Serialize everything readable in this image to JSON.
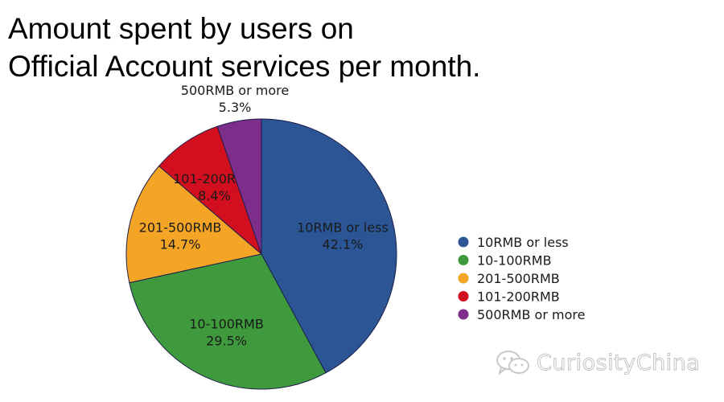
{
  "chart_data": {
    "type": "pie",
    "title_lines": [
      "Amount spent by users on",
      "Official Account services per month."
    ],
    "slices": [
      {
        "label": "10RMB or less",
        "value": 42.1,
        "value_label": "42.1%",
        "color": "#2b5595"
      },
      {
        "label": "10-100RMB",
        "value": 29.5,
        "value_label": "29.5%",
        "color": "#3f9a3d"
      },
      {
        "label": "201-500RMB",
        "value": 14.7,
        "value_label": "14.7%",
        "color": "#f5a526"
      },
      {
        "label": "101-200RMB",
        "value": 8.4,
        "value_label": "8.4%",
        "color": "#d10f1f"
      },
      {
        "label": "500RMB or more",
        "value": 5.3,
        "value_label": "5.3%",
        "color": "#7d2d8a"
      }
    ],
    "legend": [
      "10RMB or less",
      "10-100RMB",
      "201-500RMB",
      "101-200RMB",
      "500RMB or more"
    ],
    "legend_position": "right"
  },
  "watermark": {
    "text": "CuriosityChina",
    "icon": "wechat-icon",
    "color": "#c4c4c4"
  }
}
